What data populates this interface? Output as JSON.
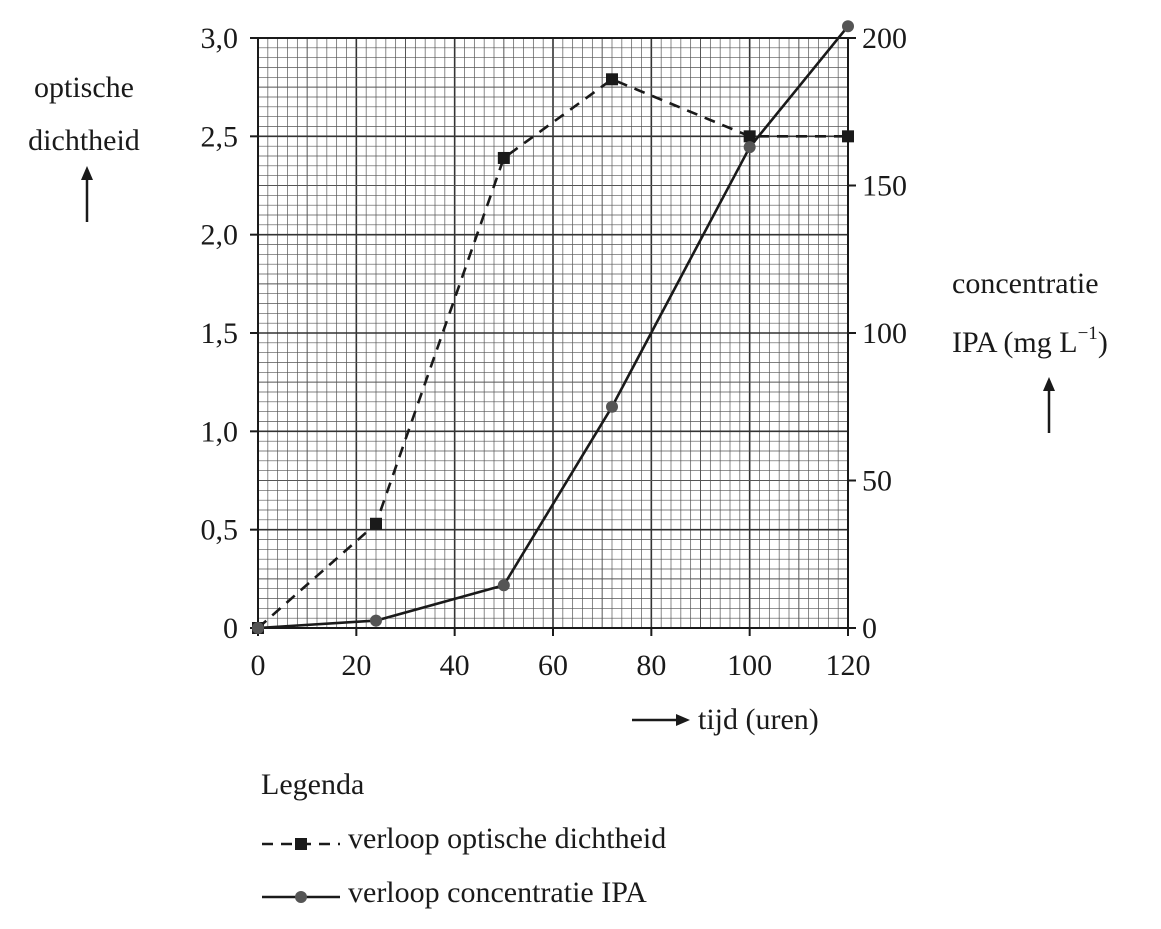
{
  "chart_data": {
    "type": "line",
    "x": [
      0,
      24,
      50,
      72,
      100,
      120
    ],
    "series": [
      {
        "name": "verloop optische dichtheid",
        "axis": "left",
        "style": "dashed",
        "marker": "square",
        "values": [
          0.0,
          0.53,
          2.39,
          2.79,
          2.5,
          2.5
        ]
      },
      {
        "name": "verloop concentratie IPA",
        "axis": "right",
        "style": "solid",
        "marker": "circle",
        "values": [
          0,
          2.5,
          14.5,
          75,
          163,
          204
        ]
      }
    ],
    "xlabel": "tijd (uren)",
    "ylabel_left": [
      "optische",
      "dichtheid"
    ],
    "ylabel_right": [
      "concentratie",
      "IPA (mg L",
      "−1",
      ")"
    ],
    "xlim": [
      0,
      120
    ],
    "ylim_left": [
      0,
      3.0
    ],
    "ylim_right": [
      0,
      200
    ],
    "xticks": [
      0,
      20,
      40,
      60,
      80,
      100,
      120
    ],
    "xtick_labels": [
      "0",
      "20",
      "40",
      "60",
      "80",
      "100",
      "120"
    ],
    "yticks_left": [
      0,
      0.5,
      1.0,
      1.5,
      2.0,
      2.5,
      3.0
    ],
    "ytick_labels_left": [
      "0",
      "0,5",
      "1,0",
      "1,5",
      "2,0",
      "2,5",
      "3,0"
    ],
    "yticks_right": [
      0,
      50,
      100,
      150,
      200
    ],
    "ytick_labels_right": [
      "0",
      "50",
      "100",
      "150",
      "200"
    ],
    "grid": true,
    "legend": {
      "title": "Legenda",
      "position": "bottom-left"
    }
  }
}
